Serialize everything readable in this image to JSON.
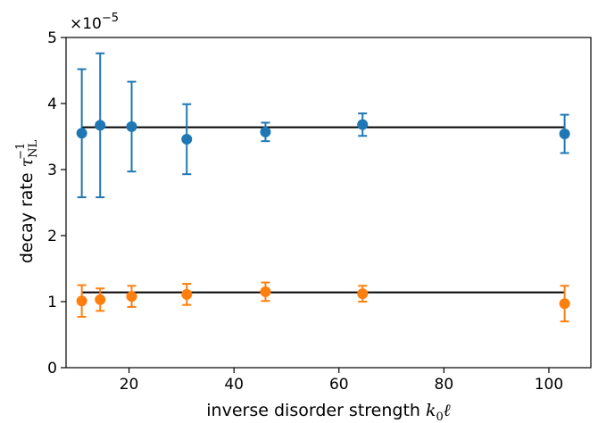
{
  "chart_data": {
    "type": "scatter",
    "x_values": [
      11,
      14.5,
      20.5,
      31,
      46,
      64.5,
      103
    ],
    "series": [
      {
        "color": "#1f77b4",
        "y": [
          3.55,
          3.67,
          3.65,
          3.46,
          3.57,
          3.68,
          3.54
        ],
        "err": [
          0.97,
          1.09,
          0.68,
          0.53,
          0.14,
          0.17,
          0.29
        ],
        "fit": 3.64
      },
      {
        "color": "#ff7f0e",
        "y": [
          1.01,
          1.03,
          1.08,
          1.11,
          1.15,
          1.12,
          0.97
        ],
        "err": [
          0.24,
          0.17,
          0.16,
          0.16,
          0.14,
          0.12,
          0.27
        ],
        "fit": 1.14
      }
    ],
    "fit_color": "#000000",
    "xlim": [
      8,
      108
    ],
    "ylim": [
      0,
      5
    ],
    "xticks": [
      20,
      40,
      60,
      80,
      100
    ],
    "yticks": [
      0,
      1,
      2,
      3,
      4,
      5
    ],
    "y_multiplier": "×10",
    "y_multiplier_exp": "−5",
    "xlabel": {
      "text": "inverse disorder strength",
      "math_k": "k",
      "math_sub": "0",
      "math_ell": "ℓ"
    },
    "ylabel": {
      "text": "decay rate",
      "math_tau": "τ",
      "math_sub": "NL",
      "math_sup": "−1"
    }
  }
}
